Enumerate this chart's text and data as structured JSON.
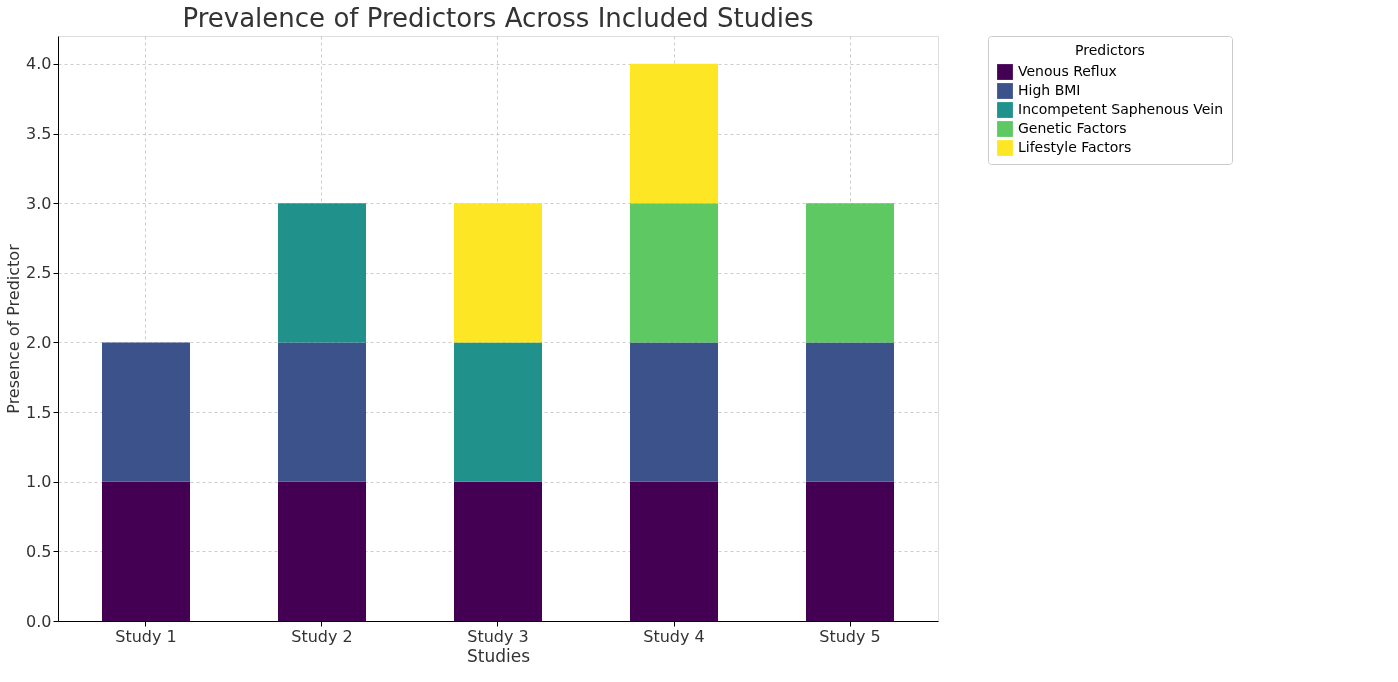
{
  "chart_data": {
    "type": "bar",
    "stacked": true,
    "title": "Prevalence of Predictors Across Included Studies",
    "xlabel": "Studies",
    "ylabel": "Presence of Predictor",
    "legend_title": "Predictors",
    "categories": [
      "Study 1",
      "Study 2",
      "Study 3",
      "Study 4",
      "Study 5"
    ],
    "series": [
      {
        "name": "Venous Reflux",
        "color": "#440154",
        "values": [
          1,
          1,
          1,
          1,
          1
        ]
      },
      {
        "name": "High BMI",
        "color": "#3b528b",
        "values": [
          1,
          1,
          0,
          1,
          1
        ]
      },
      {
        "name": "Incompetent Saphenous Vein",
        "color": "#21918c",
        "values": [
          0,
          1,
          1,
          0,
          0
        ]
      },
      {
        "name": "Genetic Factors",
        "color": "#5ec962",
        "values": [
          0,
          0,
          0,
          1,
          1
        ]
      },
      {
        "name": "Lifestyle Factors",
        "color": "#fde725",
        "values": [
          0,
          0,
          1,
          1,
          0
        ]
      }
    ],
    "ylim": [
      0,
      4.2
    ],
    "yticks": [
      {
        "value": 0,
        "label": "0.0"
      },
      {
        "value": 0.5,
        "label": "0.5"
      },
      {
        "value": 1,
        "label": "1.0"
      },
      {
        "value": 1.5,
        "label": "1.5"
      },
      {
        "value": 2,
        "label": "2.0"
      },
      {
        "value": 2.5,
        "label": "2.5"
      },
      {
        "value": 3,
        "label": "3.0"
      },
      {
        "value": 3.5,
        "label": "3.5"
      },
      {
        "value": 4,
        "label": "4.0"
      }
    ],
    "grid": true,
    "legend": "top right"
  }
}
